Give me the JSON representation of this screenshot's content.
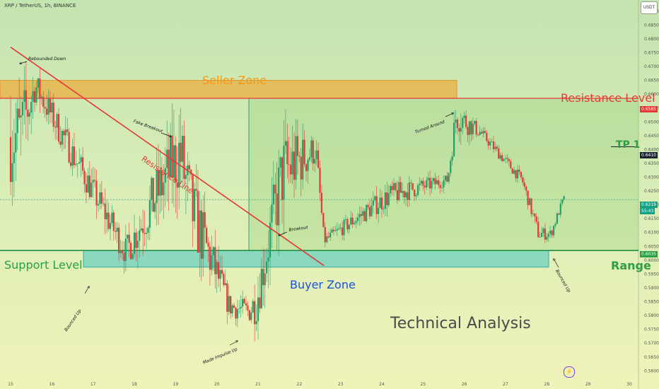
{
  "header": {
    "title": "XRP / TetherUS, 1h, BINANCE",
    "currency_button": "USDT"
  },
  "price_tags": {
    "resistance": "0.6585",
    "tp1": "0.6410",
    "current": "0.6219",
    "countdown": "55:43",
    "support": "0.6035"
  },
  "colors": {
    "resistance": "#e53935",
    "support": "#2e9e44",
    "seller_zone": "#f0a830",
    "buyer_zone": "#50c8c0",
    "up": "#22a06b",
    "down": "#e53935",
    "projection": "#1e50d8",
    "tp": "#2e9e44"
  },
  "labels": {
    "seller_zone": "Seller Zone",
    "buyer_zone": "Buyer Zone",
    "resistance_level": "Resistance Level",
    "support_level": "Support Level",
    "range": "Range",
    "tp1": "TP 1",
    "technical_analysis": "Technical Analysis",
    "resistance_line": "Resistance Line"
  },
  "annotations": {
    "rebounded_down": "Rebounded Down",
    "fake_breakout": "Fake Breakout",
    "turned_around": "Turned Around",
    "breakout": "Breakout",
    "bounced_up_left": "Bounced Up",
    "made_impulse_up": "Made Impulse Up",
    "bounced_up_right": "Bounced Up"
  },
  "icons": {
    "tradingview": "tradingview-logo-icon"
  },
  "chart_data": {
    "type": "candlestick",
    "symbol": "XRP / TetherUS",
    "timeframe": "1h",
    "x_ticks": [
      "15",
      "16",
      "17",
      "18",
      "19",
      "20",
      "21",
      "22",
      "23",
      "24",
      "25",
      "26",
      "27",
      "28",
      "29",
      "30"
    ],
    "y_ticks": [
      "0.6900",
      "0.6850",
      "0.6800",
      "0.6750",
      "0.6700",
      "0.6650",
      "0.6600",
      "0.6550",
      "0.6500",
      "0.6450",
      "0.6400",
      "0.6350",
      "0.6300",
      "0.6250",
      "0.6200",
      "0.6150",
      "0.6100",
      "0.6050",
      "0.6000",
      "0.5950",
      "0.5900",
      "0.5850",
      "0.5800",
      "0.5750",
      "0.5700",
      "0.5650",
      "0.5600"
    ],
    "ylim": [
      0.5565,
      0.692
    ],
    "levels": {
      "resistance": 0.6585,
      "tp1": 0.641,
      "current": 0.6219,
      "support": 0.6035
    },
    "zones": {
      "seller": [
        0.6585,
        0.665
      ],
      "buyer": [
        0.5975,
        0.6035
      ]
    },
    "resistance_line": [
      [
        0,
        0.677
      ],
      [
        7.6,
        0.598
      ]
    ],
    "projection": [
      [
        28.35,
        0.6215
      ],
      [
        28.6,
        0.6115
      ],
      [
        29.1,
        0.641
      ]
    ],
    "key_points": [
      {
        "x": 0.2,
        "high": 0.677,
        "low": 0.612
      },
      {
        "x": 0.6,
        "high": 0.674,
        "low": 0.652
      },
      {
        "x": 2.8,
        "high": 0.614,
        "low": 0.592
      },
      {
        "x": 4.1,
        "high": 0.668,
        "low": 0.61
      },
      {
        "x": 4.4,
        "high": 0.645,
        "low": 0.59
      },
      {
        "x": 5.3,
        "high": 0.592,
        "low": 0.575
      },
      {
        "x": 5.75,
        "high": 0.59,
        "low": 0.573
      },
      {
        "x": 5.95,
        "high": 0.6,
        "low": 0.569
      },
      {
        "x": 6.6,
        "high": 0.662,
        "low": 0.602
      },
      {
        "x": 7.4,
        "high": 0.65,
        "low": 0.63
      },
      {
        "x": 7.6,
        "high": 0.611,
        "low": 0.603
      },
      {
        "x": 9.2,
        "high": 0.632,
        "low": 0.615
      },
      {
        "x": 10.6,
        "high": 0.633,
        "low": 0.625
      },
      {
        "x": 10.8,
        "high": 0.665,
        "low": 0.64
      },
      {
        "x": 11.4,
        "high": 0.65,
        "low": 0.642
      },
      {
        "x": 12.4,
        "high": 0.633,
        "low": 0.625
      },
      {
        "x": 12.8,
        "high": 0.615,
        "low": 0.604
      },
      {
        "x": 13.1,
        "high": 0.613,
        "low": 0.606
      },
      {
        "x": 13.4,
        "high": 0.625,
        "low": 0.619
      }
    ]
  }
}
